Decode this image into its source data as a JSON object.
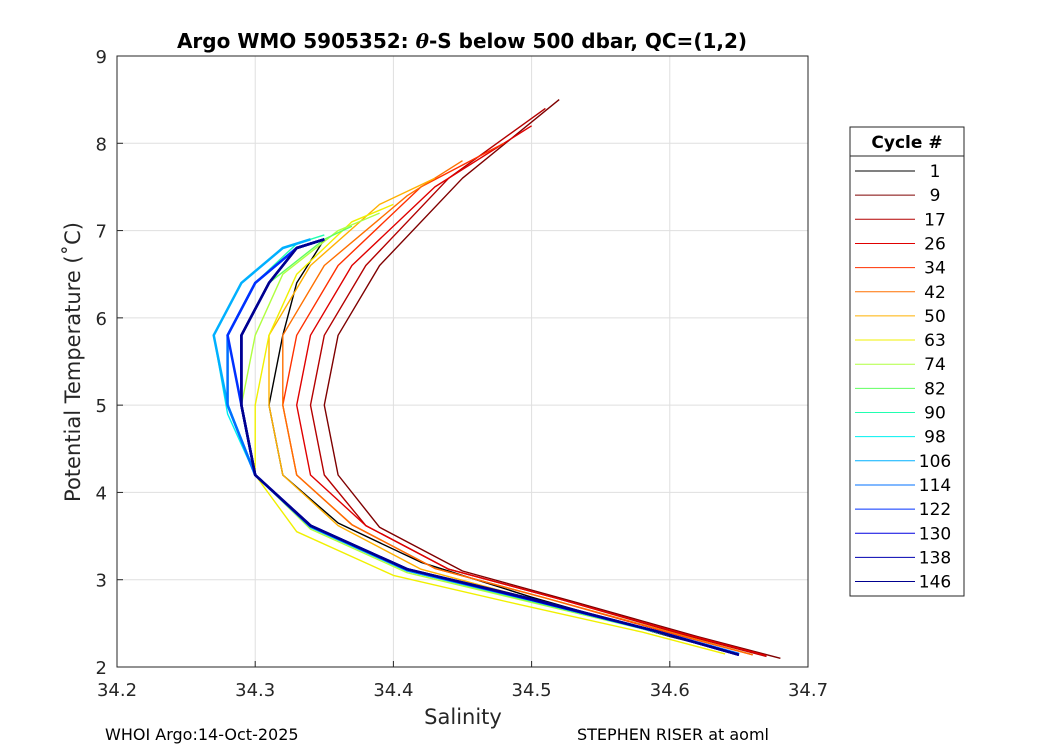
{
  "chart_data": {
    "type": "line",
    "title_prefix": "Argo WMO 5905352: ",
    "title_theta": "θ",
    "title_suffix": "-S below 500 dbar,  QC=(1,2)",
    "xlabel": "Salinity",
    "ylabel": "Potential Temperature (˚C)",
    "xlim": [
      34.2,
      34.7
    ],
    "ylim": [
      2,
      9
    ],
    "xticks": [
      34.2,
      34.3,
      34.4,
      34.5,
      34.6,
      34.7
    ],
    "yticks": [
      2,
      3,
      4,
      5,
      6,
      7,
      8,
      9
    ],
    "grid": true,
    "legend_title": "Cycle #",
    "legend_position": "right-outside",
    "legend": [
      {
        "label": "1",
        "color": "#000000"
      },
      {
        "label": "9",
        "color": "#7f0000"
      },
      {
        "label": "17",
        "color": "#b40000"
      },
      {
        "label": "26",
        "color": "#e00000"
      },
      {
        "label": "34",
        "color": "#ff3000"
      },
      {
        "label": "42",
        "color": "#ff7000"
      },
      {
        "label": "50",
        "color": "#ffb000"
      },
      {
        "label": "63",
        "color": "#f0f000"
      },
      {
        "label": "74",
        "color": "#b0ff40"
      },
      {
        "label": "82",
        "color": "#60ff60"
      },
      {
        "label": "90",
        "color": "#20ffb0"
      },
      {
        "label": "98",
        "color": "#00f0f0"
      },
      {
        "label": "106",
        "color": "#00b0ff"
      },
      {
        "label": "114",
        "color": "#0070ff"
      },
      {
        "label": "122",
        "color": "#0030ff"
      },
      {
        "label": "130",
        "color": "#0000e0"
      },
      {
        "label": "138",
        "color": "#0000b0"
      },
      {
        "label": "146",
        "color": "#00008f"
      }
    ],
    "series": [
      {
        "name": "1",
        "x": [
          34.65,
          34.6,
          34.5,
          34.42,
          34.36,
          34.32,
          34.31,
          34.32,
          34.33,
          34.35
        ],
        "y": [
          2.15,
          2.35,
          2.8,
          3.2,
          3.65,
          4.2,
          5.0,
          5.8,
          6.4,
          6.9
        ]
      },
      {
        "name": "9",
        "x": [
          34.68,
          34.62,
          34.53,
          34.45,
          34.39,
          34.36,
          34.35,
          34.36,
          34.39,
          34.45,
          34.52
        ],
        "y": [
          2.1,
          2.35,
          2.75,
          3.1,
          3.6,
          4.2,
          5.0,
          5.8,
          6.6,
          7.6,
          8.5
        ]
      },
      {
        "name": "17",
        "x": [
          34.67,
          34.61,
          34.52,
          34.44,
          34.38,
          34.35,
          34.34,
          34.35,
          34.38,
          34.44,
          34.51
        ],
        "y": [
          2.12,
          2.37,
          2.78,
          3.12,
          3.62,
          4.2,
          5.0,
          5.8,
          6.6,
          7.6,
          8.4
        ]
      },
      {
        "name": "26",
        "x": [
          34.67,
          34.61,
          34.52,
          34.44,
          34.38,
          34.34,
          34.33,
          34.34,
          34.37,
          34.43,
          34.5
        ],
        "y": [
          2.13,
          2.38,
          2.78,
          3.12,
          3.62,
          4.2,
          5.0,
          5.8,
          6.6,
          7.5,
          8.2
        ]
      },
      {
        "name": "34",
        "x": [
          34.66,
          34.6,
          34.51,
          34.43,
          34.37,
          34.33,
          34.32,
          34.33,
          34.36,
          34.42,
          34.48
        ],
        "y": [
          2.14,
          2.39,
          2.79,
          3.13,
          3.63,
          4.2,
          5.0,
          5.8,
          6.6,
          7.5,
          8.0
        ]
      },
      {
        "name": "42",
        "x": [
          34.66,
          34.6,
          34.51,
          34.43,
          34.37,
          34.33,
          34.32,
          34.32,
          34.35,
          34.41,
          34.45
        ],
        "y": [
          2.14,
          2.4,
          2.79,
          3.13,
          3.63,
          4.2,
          5.0,
          5.8,
          6.6,
          7.4,
          7.8
        ]
      },
      {
        "name": "50",
        "x": [
          34.65,
          34.59,
          34.5,
          34.42,
          34.36,
          34.32,
          34.31,
          34.31,
          34.34,
          34.39,
          34.43
        ],
        "y": [
          2.14,
          2.4,
          2.78,
          3.12,
          3.62,
          4.2,
          5.0,
          5.8,
          6.6,
          7.3,
          7.6
        ]
      },
      {
        "name": "63",
        "x": [
          34.64,
          34.58,
          34.49,
          34.4,
          34.33,
          34.3,
          34.3,
          34.31,
          34.33,
          34.37,
          34.4
        ],
        "y": [
          2.15,
          2.4,
          2.72,
          3.05,
          3.55,
          4.2,
          5.0,
          5.8,
          6.5,
          7.1,
          7.3
        ]
      },
      {
        "name": "74",
        "x": [
          34.65,
          34.59,
          34.5,
          34.41,
          34.34,
          34.3,
          34.29,
          34.3,
          34.32,
          34.36,
          34.39
        ],
        "y": [
          2.15,
          2.4,
          2.74,
          3.08,
          3.58,
          4.2,
          5.0,
          5.8,
          6.5,
          7.0,
          7.2
        ]
      },
      {
        "name": "82",
        "x": [
          34.65,
          34.59,
          34.5,
          34.41,
          34.34,
          34.3,
          34.29,
          34.29,
          34.31,
          34.35,
          34.37
        ],
        "y": [
          2.15,
          2.4,
          2.75,
          3.1,
          3.6,
          4.2,
          5.0,
          5.8,
          6.4,
          6.9,
          7.05
        ]
      },
      {
        "name": "90",
        "x": [
          34.65,
          34.59,
          34.5,
          34.41,
          34.34,
          34.3,
          34.28,
          34.28,
          34.3,
          34.33,
          34.35
        ],
        "y": [
          2.15,
          2.4,
          2.76,
          3.1,
          3.6,
          4.2,
          5.0,
          5.8,
          6.4,
          6.85,
          6.95
        ]
      },
      {
        "name": "98",
        "x": [
          34.65,
          34.59,
          34.5,
          34.41,
          34.34,
          34.3,
          34.28,
          34.27,
          34.29,
          34.32,
          34.34
        ],
        "y": [
          2.15,
          2.4,
          2.76,
          3.1,
          3.6,
          4.2,
          4.9,
          5.8,
          6.4,
          6.8,
          6.9
        ]
      },
      {
        "name": "106",
        "x": [
          34.65,
          34.59,
          34.5,
          34.41,
          34.34,
          34.3,
          34.28,
          34.27,
          34.29,
          34.32,
          34.34
        ],
        "y": [
          2.15,
          2.41,
          2.77,
          3.11,
          3.61,
          4.2,
          5.0,
          5.8,
          6.4,
          6.8,
          6.9
        ]
      },
      {
        "name": "114",
        "x": [
          34.65,
          34.59,
          34.5,
          34.41,
          34.34,
          34.3,
          34.28,
          34.28,
          34.3,
          34.33,
          34.35
        ],
        "y": [
          2.15,
          2.41,
          2.77,
          3.11,
          3.61,
          4.2,
          5.0,
          5.8,
          6.4,
          6.8,
          6.9
        ]
      },
      {
        "name": "122",
        "x": [
          34.65,
          34.59,
          34.5,
          34.41,
          34.34,
          34.3,
          34.29,
          34.28,
          34.3,
          34.33,
          34.35
        ],
        "y": [
          2.14,
          2.41,
          2.77,
          3.12,
          3.62,
          4.2,
          5.0,
          5.8,
          6.4,
          6.8,
          6.9
        ]
      },
      {
        "name": "130",
        "x": [
          34.65,
          34.59,
          34.5,
          34.41,
          34.34,
          34.3,
          34.29,
          34.29,
          34.31,
          34.33,
          34.35
        ],
        "y": [
          2.14,
          2.41,
          2.77,
          3.12,
          3.62,
          4.2,
          5.0,
          5.8,
          6.4,
          6.8,
          6.9
        ]
      },
      {
        "name": "138",
        "x": [
          34.65,
          34.59,
          34.5,
          34.41,
          34.34,
          34.3,
          34.29,
          34.29,
          34.31,
          34.33,
          34.35
        ],
        "y": [
          2.14,
          2.41,
          2.78,
          3.12,
          3.62,
          4.2,
          5.0,
          5.8,
          6.4,
          6.8,
          6.9
        ]
      },
      {
        "name": "146",
        "x": [
          34.65,
          34.59,
          34.5,
          34.41,
          34.34,
          34.3,
          34.29,
          34.29,
          34.31,
          34.33,
          34.35
        ],
        "y": [
          2.14,
          2.41,
          2.78,
          3.12,
          3.62,
          4.2,
          5.0,
          5.8,
          6.4,
          6.8,
          6.9
        ]
      }
    ]
  },
  "footer": {
    "left": "WHOI Argo:14-Oct-2025",
    "right": "STEPHEN RISER at aoml"
  }
}
